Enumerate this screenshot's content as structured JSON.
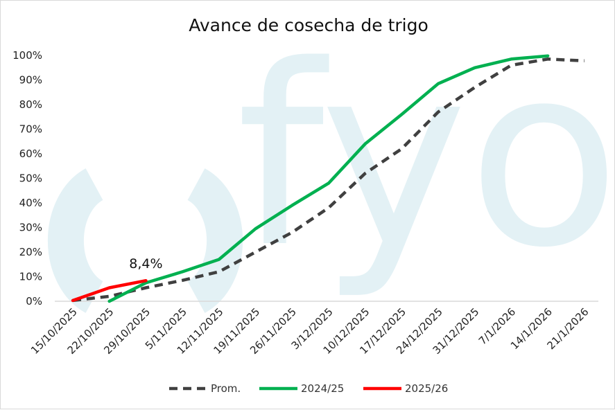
{
  "chart_data": {
    "type": "line",
    "title": "Avance de cosecha de trigo",
    "xlabel": "",
    "ylabel": "",
    "categories": [
      "15/10/2025",
      "22/10/2025",
      "29/10/2025",
      "5/11/2025",
      "12/11/2025",
      "19/11/2025",
      "26/11/2025",
      "3/12/2025",
      "10/12/2025",
      "17/12/2025",
      "24/12/2025",
      "31/12/2025",
      "7/1/2026",
      "14/1/2026",
      "21/1/2026"
    ],
    "y_ticks": [
      "0%",
      "10%",
      "20%",
      "30%",
      "40%",
      "50%",
      "60%",
      "70%",
      "80%",
      "90%",
      "100%"
    ],
    "ylim": [
      0,
      100
    ],
    "grid": false,
    "legend_position": "bottom",
    "series": [
      {
        "name": "Prom.",
        "color": "#404040",
        "style": "dashed",
        "points": [
          [
            0,
            0.3
          ],
          [
            1,
            2
          ],
          [
            2,
            5.5
          ],
          [
            3,
            8.5
          ],
          [
            4,
            12
          ],
          [
            5,
            20
          ],
          [
            6,
            28
          ],
          [
            7,
            38
          ],
          [
            8,
            52
          ],
          [
            9,
            62
          ],
          [
            10,
            77
          ],
          [
            11,
            87
          ],
          [
            12,
            96
          ],
          [
            13,
            98.5
          ],
          [
            14,
            97.8
          ]
        ]
      },
      {
        "name": "2024/25",
        "color": "#00b050",
        "style": "solid",
        "points": [
          [
            1,
            0
          ],
          [
            2,
            7.5
          ],
          [
            3,
            12
          ],
          [
            4,
            17
          ],
          [
            5,
            29.5
          ],
          [
            6,
            39
          ],
          [
            7,
            48
          ],
          [
            8,
            64
          ],
          [
            9,
            76
          ],
          [
            10,
            88.5
          ],
          [
            11,
            95
          ],
          [
            12,
            98.5
          ],
          [
            13,
            99.8
          ]
        ]
      },
      {
        "name": "2025/26",
        "color": "#ff0000",
        "style": "solid",
        "points": [
          [
            0,
            0.3
          ],
          [
            1,
            5.5
          ],
          [
            2,
            8.4
          ]
        ]
      }
    ],
    "annotations": [
      {
        "text": "8,4%",
        "series": "2025/26",
        "point_index": 2
      }
    ]
  },
  "watermark": {
    "text": "fyo",
    "color": "#e3f1f5"
  }
}
